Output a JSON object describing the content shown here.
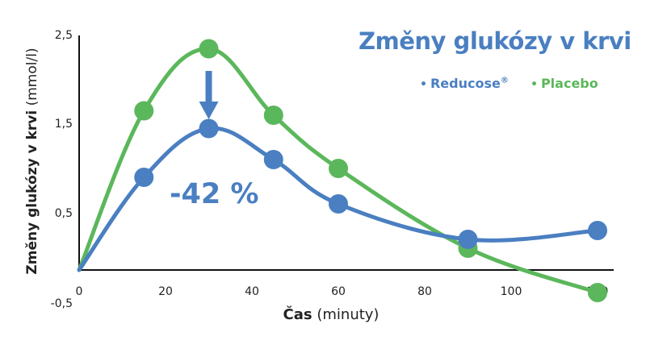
{
  "chart_data": {
    "type": "line",
    "title": "Změny glukózy v krvi",
    "xlabel_bold": "Čas",
    "xlabel_rest": " (minuty)",
    "ylabel_bold": "Změny glukózy v krvi",
    "ylabel_rest": " (mmol/l)",
    "x_ticks": [
      0,
      20,
      40,
      60,
      80,
      100,
      120
    ],
    "y_ticks": [
      "2,5",
      "1,5",
      "0,5",
      "-0,5"
    ],
    "y_tick_values": [
      2.5,
      1.5,
      0.5,
      -0.5
    ],
    "xlim": [
      0,
      120
    ],
    "ylim": [
      -0.5,
      2.5
    ],
    "grid": false,
    "legend_position": "top-right",
    "series": [
      {
        "name": "Reducose®",
        "color": "#4a7fc1",
        "x": [
          0,
          15,
          30,
          45,
          60,
          90,
          120
        ],
        "y": [
          0.15,
          0.9,
          1.45,
          1.1,
          0.6,
          0.2,
          0.3
        ]
      },
      {
        "name": "Placebo",
        "color": "#5bb75b",
        "x": [
          0,
          15,
          30,
          45,
          60,
          90,
          120
        ],
        "y": [
          0.15,
          1.65,
          2.35,
          1.6,
          1.0,
          0.1,
          -0.4
        ]
      }
    ],
    "annotation": "-42 %"
  },
  "legend": {
    "reducose_label": "Reducose",
    "reducose_mark": "®",
    "placebo_label": "Placebo"
  }
}
